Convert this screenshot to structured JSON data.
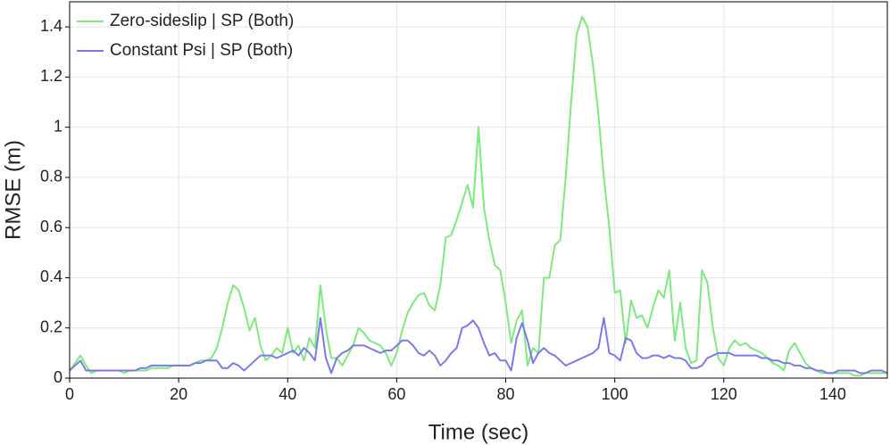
{
  "chart_data": {
    "type": "line",
    "xlabel": "Time (sec)",
    "ylabel": "RMSE (m)",
    "x": [
      0,
      1,
      2,
      3,
      4,
      5,
      6,
      7,
      8,
      9,
      10,
      11,
      12,
      13,
      14,
      15,
      16,
      17,
      18,
      19,
      20,
      21,
      22,
      23,
      24,
      25,
      26,
      27,
      28,
      29,
      30,
      31,
      32,
      33,
      34,
      35,
      36,
      37,
      38,
      39,
      40,
      41,
      42,
      43,
      44,
      45,
      46,
      47,
      48,
      49,
      50,
      51,
      52,
      53,
      54,
      55,
      56,
      57,
      58,
      59,
      60,
      61,
      62,
      63,
      64,
      65,
      66,
      67,
      68,
      69,
      70,
      71,
      72,
      73,
      74,
      75,
      76,
      77,
      78,
      79,
      80,
      81,
      82,
      83,
      84,
      85,
      86,
      87,
      88,
      89,
      90,
      91,
      92,
      93,
      94,
      95,
      96,
      97,
      98,
      99,
      100,
      101,
      102,
      103,
      104,
      105,
      106,
      107,
      108,
      109,
      110,
      111,
      112,
      113,
      114,
      115,
      116,
      117,
      118,
      119,
      120,
      121,
      122,
      123,
      124,
      125,
      126,
      127,
      128,
      129,
      130,
      131,
      132,
      133,
      134,
      135,
      136,
      137,
      138,
      139,
      140,
      141,
      142,
      143,
      144,
      145,
      146,
      147,
      148,
      149,
      150
    ],
    "series": [
      {
        "name": "Zero-sideslip | SP (Both)",
        "color": "#80e880",
        "values": [
          0.03,
          0.06,
          0.09,
          0.05,
          0.02,
          0.03,
          0.03,
          0.03,
          0.03,
          0.03,
          0.02,
          0.03,
          0.03,
          0.03,
          0.03,
          0.04,
          0.04,
          0.04,
          0.04,
          0.05,
          0.05,
          0.05,
          0.05,
          0.06,
          0.07,
          0.07,
          0.08,
          0.12,
          0.2,
          0.3,
          0.37,
          0.35,
          0.28,
          0.19,
          0.24,
          0.13,
          0.07,
          0.09,
          0.12,
          0.1,
          0.2,
          0.1,
          0.13,
          0.07,
          0.16,
          0.12,
          0.37,
          0.2,
          0.08,
          0.08,
          0.05,
          0.09,
          0.13,
          0.2,
          0.18,
          0.15,
          0.14,
          0.13,
          0.1,
          0.05,
          0.1,
          0.19,
          0.26,
          0.3,
          0.33,
          0.34,
          0.29,
          0.27,
          0.37,
          0.56,
          0.57,
          0.63,
          0.7,
          0.77,
          0.68,
          1,
          0.68,
          0.55,
          0.45,
          0.43,
          0.3,
          0.14,
          0.23,
          0.27,
          0.05,
          0.12,
          0.1,
          0.4,
          0.4,
          0.53,
          0.55,
          0.8,
          1.1,
          1.37,
          1.44,
          1.4,
          1.25,
          1.05,
          0.8,
          0.6,
          0.34,
          0.35,
          0.14,
          0.31,
          0.24,
          0.25,
          0.2,
          0.28,
          0.35,
          0.32,
          0.43,
          0.15,
          0.3,
          0.12,
          0.06,
          0.07,
          0.43,
          0.38,
          0.2,
          0.08,
          0.05,
          0.12,
          0.15,
          0.13,
          0.14,
          0.12,
          0.11,
          0.1,
          0.08,
          0.06,
          0.05,
          0.03,
          0.11,
          0.14,
          0.1,
          0.06,
          0.04,
          0.03,
          0.02,
          0.02,
          0.02,
          0.02,
          0.02,
          0.02,
          0.01,
          0.01,
          0.02,
          0.02,
          0.02,
          0.02,
          0.02
        ]
      },
      {
        "name": "Constant Psi | SP (Both)",
        "color": "#7b7be8",
        "values": [
          0.03,
          0.05,
          0.07,
          0.03,
          0.03,
          0.03,
          0.03,
          0.03,
          0.03,
          0.03,
          0.03,
          0.03,
          0.03,
          0.04,
          0.04,
          0.05,
          0.05,
          0.05,
          0.05,
          0.05,
          0.05,
          0.05,
          0.05,
          0.06,
          0.06,
          0.07,
          0.07,
          0.07,
          0.04,
          0.04,
          0.06,
          0.05,
          0.03,
          0.05,
          0.07,
          0.09,
          0.09,
          0.09,
          0.08,
          0.09,
          0.1,
          0.11,
          0.09,
          0.12,
          0.1,
          0.07,
          0.24,
          0.08,
          0.02,
          0.08,
          0.1,
          0.11,
          0.13,
          0.13,
          0.13,
          0.12,
          0.11,
          0.1,
          0.11,
          0.11,
          0.13,
          0.15,
          0.15,
          0.13,
          0.1,
          0.09,
          0.11,
          0.09,
          0.05,
          0.07,
          0.1,
          0.12,
          0.2,
          0.21,
          0.23,
          0.2,
          0.14,
          0.09,
          0.1,
          0.07,
          0.07,
          0.03,
          0.16,
          0.22,
          0.15,
          0.06,
          0.1,
          0.12,
          0.1,
          0.09,
          0.07,
          0.05,
          0.06,
          0.07,
          0.08,
          0.09,
          0.1,
          0.12,
          0.24,
          0.1,
          0.09,
          0.07,
          0.16,
          0.15,
          0.1,
          0.08,
          0.08,
          0.09,
          0.09,
          0.08,
          0.09,
          0.08,
          0.08,
          0.07,
          0.04,
          0.04,
          0.05,
          0.08,
          0.09,
          0.1,
          0.1,
          0.1,
          0.09,
          0.09,
          0.09,
          0.09,
          0.09,
          0.08,
          0.08,
          0.07,
          0.07,
          0.06,
          0.06,
          0.05,
          0.05,
          0.04,
          0.04,
          0.03,
          0.03,
          0.02,
          0.02,
          0.03,
          0.03,
          0.03,
          0.03,
          0.02,
          0.02,
          0.03,
          0.03,
          0.03,
          0.02
        ]
      }
    ],
    "xlim": [
      0,
      150
    ],
    "ylim": [
      0,
      1.5
    ],
    "xticks": [
      0,
      20,
      40,
      60,
      80,
      100,
      120,
      140
    ],
    "yticks": [
      0,
      0.2,
      0.4,
      0.6,
      0.8,
      1,
      1.2,
      1.4
    ],
    "grid": true,
    "legend": "upper left"
  }
}
